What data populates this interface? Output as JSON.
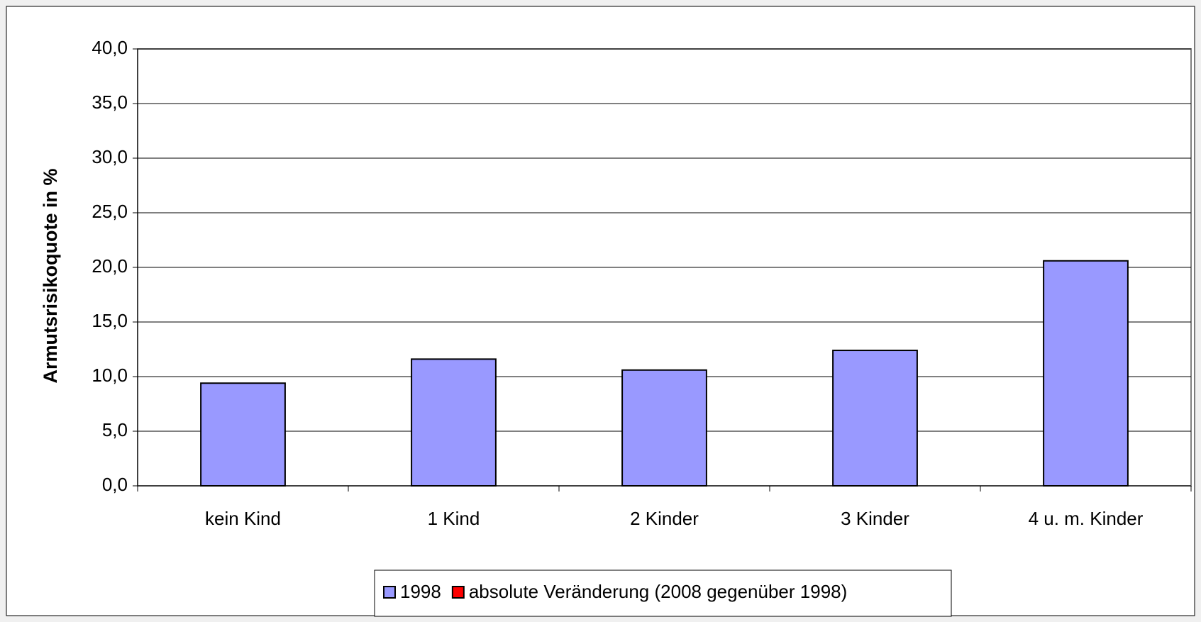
{
  "chart_data": {
    "type": "bar",
    "y_label": "Armutsrisikoquote in %",
    "categories": [
      "kein Kind",
      "1 Kind",
      "2 Kinder",
      "3 Kinder",
      "4 u. m. Kinder"
    ],
    "series": [
      {
        "name": "1998",
        "color": "#9999ff",
        "values": [
          9.4,
          11.6,
          10.6,
          12.4,
          20.6
        ]
      },
      {
        "name": "absolute Veränderung (2008 gegenüber 1998)",
        "color": "#ff0000",
        "values": [
          null,
          null,
          null,
          null,
          null
        ]
      }
    ],
    "stacked": true,
    "ylim": [
      0,
      40
    ],
    "yticks": [
      {
        "value": 0,
        "label": "0,0"
      },
      {
        "value": 5,
        "label": "5,0"
      },
      {
        "value": 10,
        "label": "10,0"
      },
      {
        "value": 15,
        "label": "15,0"
      },
      {
        "value": 20,
        "label": "20,0"
      },
      {
        "value": 25,
        "label": "25,0"
      },
      {
        "value": 30,
        "label": "30,0"
      },
      {
        "value": 35,
        "label": "35,0"
      },
      {
        "value": 40,
        "label": "40,0"
      }
    ],
    "grid": true,
    "legend": "bottom"
  }
}
